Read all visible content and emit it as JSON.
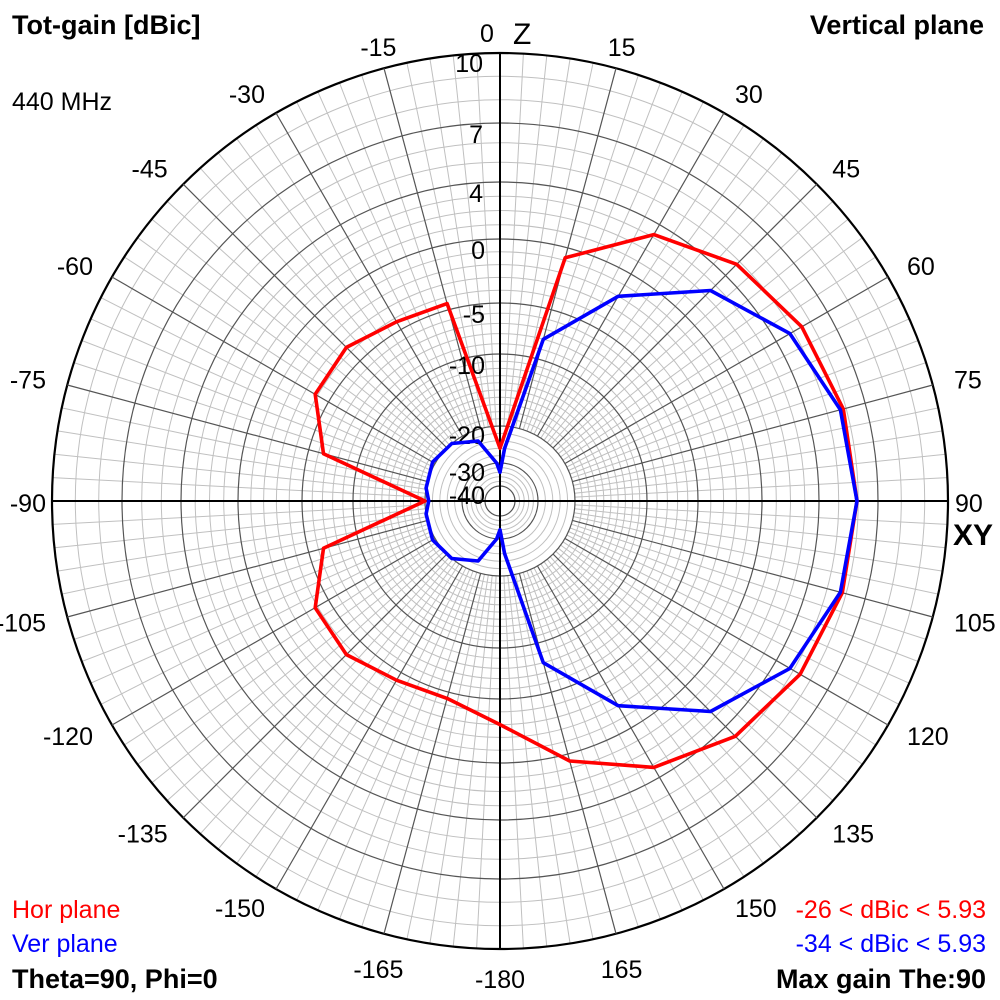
{
  "header": {
    "title_left": "Tot-gain [dBic]",
    "title_right": "Vertical plane",
    "frequency": "440 MHz"
  },
  "legend": {
    "hor_label": "Hor plane",
    "ver_label": "Ver plane",
    "hor_range": "-26 < dBic < 5.93",
    "ver_range": "-34 < dBic < 5.93"
  },
  "status": {
    "left": "Theta=90, Phi=0",
    "right": "Max gain The:90"
  },
  "colors": {
    "hor": "#ff0000",
    "ver": "#0000ff",
    "grid": "#000000",
    "minor_grid": "#c0c0c0"
  },
  "chart_data": {
    "type": "polar",
    "angle_unit": "degrees",
    "angle_zero": "top",
    "axis_labels": {
      "top": "Z",
      "right": "XY"
    },
    "angle_tick_labels": [
      {
        "angle": 0,
        "label": "0"
      },
      {
        "angle": 15,
        "label": "15"
      },
      {
        "angle": 30,
        "label": "30"
      },
      {
        "angle": 45,
        "label": "45"
      },
      {
        "angle": 60,
        "label": "60"
      },
      {
        "angle": 75,
        "label": "75"
      },
      {
        "angle": 90,
        "label": "90"
      },
      {
        "angle": 105,
        "label": "105"
      },
      {
        "angle": 120,
        "label": "120"
      },
      {
        "angle": 135,
        "label": "135"
      },
      {
        "angle": 150,
        "label": "150"
      },
      {
        "angle": 165,
        "label": "165"
      },
      {
        "angle": 180,
        "label": "-180"
      },
      {
        "angle": -165,
        "label": "-165"
      },
      {
        "angle": -150,
        "label": "-150"
      },
      {
        "angle": -135,
        "label": "-135"
      },
      {
        "angle": -120,
        "label": "-120"
      },
      {
        "angle": -105,
        "label": "-105"
      },
      {
        "angle": -90,
        "label": "-90"
      },
      {
        "angle": -75,
        "label": "-75"
      },
      {
        "angle": -60,
        "label": "-60"
      },
      {
        "angle": -45,
        "label": "-45"
      },
      {
        "angle": -30,
        "label": "-30"
      },
      {
        "angle": -15,
        "label": "-15"
      }
    ],
    "radial_ticks": [
      10,
      7,
      4,
      0,
      -5,
      -10,
      -20,
      -30,
      -40
    ],
    "radial_tick_labels": [
      "10",
      "7",
      "4",
      "0",
      "-5",
      "-10",
      "-20",
      "-30",
      "-40"
    ],
    "series": [
      {
        "name": "Hor plane",
        "color": "#ff0000",
        "points": [
          [
            0,
            -26
          ],
          [
            15,
            -0.8
          ],
          [
            30,
            3.2
          ],
          [
            45,
            4.8
          ],
          [
            60,
            5.5
          ],
          [
            75,
            5.85
          ],
          [
            90,
            5.93
          ],
          [
            105,
            5.8
          ],
          [
            120,
            5.4
          ],
          [
            135,
            4.7
          ],
          [
            150,
            3.2
          ],
          [
            165,
            0.5
          ],
          [
            180,
            -3
          ],
          [
            -165,
            -4.5
          ],
          [
            -150,
            -4.3
          ],
          [
            -135,
            -3.5
          ],
          [
            -120,
            -3.8
          ],
          [
            -105,
            -6.5
          ],
          [
            -90,
            -20
          ],
          [
            -75,
            -6.5
          ],
          [
            -60,
            -3.8
          ],
          [
            -45,
            -3.5
          ],
          [
            -30,
            -4.3
          ],
          [
            -15,
            -4.5
          ],
          [
            0,
            -26
          ]
        ]
      },
      {
        "name": "Ver plane",
        "color": "#0000ff",
        "points": [
          [
            0,
            -34
          ],
          [
            5,
            -26
          ],
          [
            15,
            -8
          ],
          [
            30,
            -2
          ],
          [
            45,
            2.5
          ],
          [
            60,
            4.8
          ],
          [
            75,
            5.7
          ],
          [
            90,
            5.93
          ],
          [
            105,
            5.7
          ],
          [
            120,
            4.8
          ],
          [
            135,
            2.5
          ],
          [
            150,
            -2
          ],
          [
            165,
            -8
          ],
          [
            175,
            -26
          ],
          [
            180,
            -34
          ],
          [
            -175,
            -30
          ],
          [
            -160,
            -23
          ],
          [
            -140,
            -20
          ],
          [
            -120,
            -19.6
          ],
          [
            -100,
            -20
          ],
          [
            -90,
            -21
          ],
          [
            -80,
            -20
          ],
          [
            -60,
            -19.6
          ],
          [
            -40,
            -20
          ],
          [
            -20,
            -23
          ],
          [
            -5,
            -30
          ],
          [
            0,
            -34
          ]
        ]
      }
    ]
  }
}
